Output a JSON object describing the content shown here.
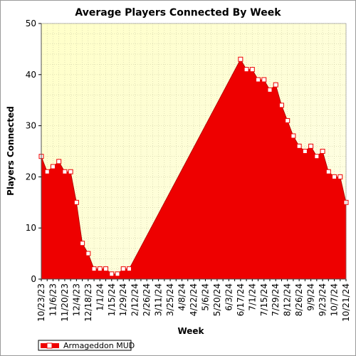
{
  "chart_data": {
    "type": "area",
    "title": "Average Players Connected By Week",
    "xlabel": "Week",
    "ylabel": "Players Connected",
    "ylim": [
      0,
      50
    ],
    "yticks": [
      0,
      10,
      20,
      30,
      40,
      50
    ],
    "grid": true,
    "legend_position": "bottom-left",
    "xtick_labels": [
      "10/23/23",
      "11/6/23",
      "11/20/23",
      "12/4/23",
      "12/18/23",
      "1/1/24",
      "1/15/24",
      "1/29/24",
      "2/12/24",
      "2/26/24",
      "3/11/24",
      "3/25/24",
      "4/8/24",
      "4/22/24",
      "5/6/24",
      "5/20/24",
      "6/3/24",
      "6/17/24",
      "7/1/24",
      "7/15/24",
      "7/29/24",
      "8/12/24",
      "8/26/24",
      "9/9/24",
      "9/23/24",
      "10/7/24",
      "10/21/24"
    ],
    "series": [
      {
        "name": "Armageddon MUD",
        "color": "#ee0000",
        "points": [
          {
            "x": "10/23/23",
            "y": 24
          },
          {
            "x": "10/30/23",
            "y": 21
          },
          {
            "x": "11/6/23",
            "y": 22
          },
          {
            "x": "11/13/23",
            "y": 23
          },
          {
            "x": "11/20/23",
            "y": 21
          },
          {
            "x": "11/27/23",
            "y": 21
          },
          {
            "x": "12/4/23",
            "y": 15
          },
          {
            "x": "12/11/23",
            "y": 7
          },
          {
            "x": "12/18/23",
            "y": 5
          },
          {
            "x": "12/25/23",
            "y": 2
          },
          {
            "x": "1/1/24",
            "y": 2
          },
          {
            "x": "1/8/24",
            "y": 2
          },
          {
            "x": "1/15/24",
            "y": 1
          },
          {
            "x": "1/22/24",
            "y": 1
          },
          {
            "x": "1/29/24",
            "y": 2
          },
          {
            "x": "2/5/24",
            "y": 2
          },
          {
            "x": "6/17/24",
            "y": 43
          },
          {
            "x": "6/24/24",
            "y": 41
          },
          {
            "x": "7/1/24",
            "y": 41
          },
          {
            "x": "7/8/24",
            "y": 39
          },
          {
            "x": "7/15/24",
            "y": 39
          },
          {
            "x": "7/22/24",
            "y": 37
          },
          {
            "x": "7/29/24",
            "y": 38
          },
          {
            "x": "8/5/24",
            "y": 34
          },
          {
            "x": "8/12/24",
            "y": 31
          },
          {
            "x": "8/19/24",
            "y": 28
          },
          {
            "x": "8/26/24",
            "y": 26
          },
          {
            "x": "9/2/24",
            "y": 25
          },
          {
            "x": "9/9/24",
            "y": 26
          },
          {
            "x": "9/16/24",
            "y": 24
          },
          {
            "x": "9/23/24",
            "y": 25
          },
          {
            "x": "9/30/24",
            "y": 21
          },
          {
            "x": "10/7/24",
            "y": 20
          },
          {
            "x": "10/14/24",
            "y": 20
          },
          {
            "x": "10/21/24",
            "y": 15
          }
        ]
      }
    ]
  }
}
